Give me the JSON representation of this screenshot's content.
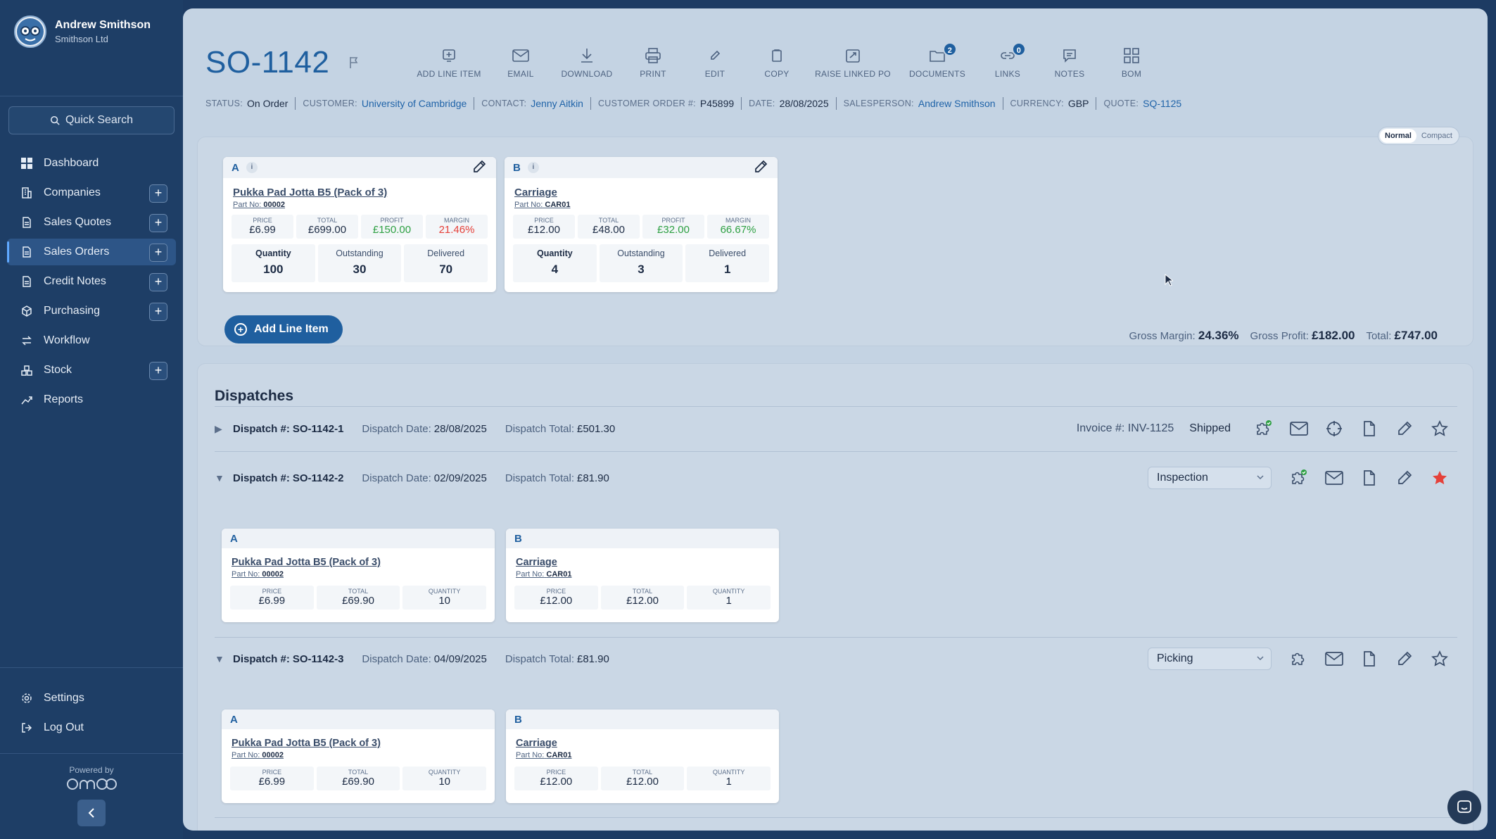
{
  "user": {
    "name": "Andrew Smithson",
    "company": "Smithson Ltd"
  },
  "search": {
    "label": "Quick Search"
  },
  "nav": {
    "items": [
      {
        "label": "Dashboard",
        "icon": "grid-icon",
        "plus": false
      },
      {
        "label": "Companies",
        "icon": "building-icon",
        "plus": true
      },
      {
        "label": "Sales Quotes",
        "icon": "document-icon",
        "plus": true
      },
      {
        "label": "Sales Orders",
        "icon": "document-icon",
        "plus": true,
        "active": true
      },
      {
        "label": "Credit Notes",
        "icon": "document-icon",
        "plus": true
      },
      {
        "label": "Purchasing",
        "icon": "box-icon",
        "plus": true
      },
      {
        "label": "Workflow",
        "icon": "arrows-icon",
        "plus": false
      },
      {
        "label": "Stock",
        "icon": "stock-icon",
        "plus": true
      },
      {
        "label": "Reports",
        "icon": "chart-icon",
        "plus": false
      }
    ],
    "settings": "Settings",
    "logout": "Log Out",
    "powered_by": "Powered by",
    "brand": "omoo"
  },
  "order": {
    "id": "SO-1142",
    "toolbar": {
      "add_line_item": "ADD LINE ITEM",
      "email": "EMAIL",
      "download": "DOWNLOAD",
      "print": "PRINT",
      "edit": "EDIT",
      "copy": "COPY",
      "raise_linked_po": "RAISE LINKED PO",
      "documents": "DOCUMENTS",
      "documents_count": "2",
      "links": "LINKS",
      "links_count": "0",
      "notes": "NOTES",
      "bom": "BOM"
    },
    "status": {
      "status_label": "STATUS:",
      "status": "On Order",
      "customer_label": "CUSTOMER:",
      "customer": "University of Cambridge",
      "contact_label": "CONTACT:",
      "contact": "Jenny Aitkin",
      "order_no_label": "CUSTOMER ORDER #:",
      "order_no": "P45899",
      "date_label": "DATE:",
      "date": "28/08/2025",
      "salesperson_label": "SALESPERSON:",
      "salesperson": "Andrew Smithson",
      "currency_label": "CURRENCY:",
      "currency": "GBP",
      "quote_label": "QUOTE:",
      "quote": "SQ-1125"
    },
    "view": {
      "normal": "Normal",
      "compact": "Compact"
    }
  },
  "labels": {
    "part_no": "Part No:",
    "price": "PRICE",
    "total": "TOTAL",
    "profit": "PROFIT",
    "margin": "MARGIN",
    "quantity": "Quantity",
    "outstanding": "Outstanding",
    "delivered": "Delivered",
    "quantity_caps": "QUANTITY"
  },
  "line_items": [
    {
      "letter": "A",
      "name": "Pukka Pad Jotta B5 (Pack of 3)",
      "part_no": "00002",
      "price": "£6.99",
      "total": "£699.00",
      "profit": "£150.00",
      "margin": "21.46%",
      "quantity": "100",
      "outstanding": "30",
      "delivered": "70"
    },
    {
      "letter": "B",
      "name": "Carriage",
      "part_no": "CAR01",
      "price": "£12.00",
      "total": "£48.00",
      "profit": "£32.00",
      "margin": "66.67%",
      "quantity": "4",
      "outstanding": "3",
      "delivered": "1"
    }
  ],
  "add_line_button": "Add Line Item",
  "totals": {
    "gross_margin_label": "Gross Margin:",
    "gross_margin": "24.36%",
    "gross_profit_label": "Gross Profit:",
    "gross_profit": "£182.00",
    "total_label": "Total:",
    "total": "£747.00"
  },
  "dispatches": {
    "title": "Dispatches",
    "dispatch_label": "Dispatch #:",
    "date_label": "Dispatch Date:",
    "total_label": "Dispatch Total:",
    "rows": [
      {
        "id": "SO-1142-1",
        "date": "28/08/2025",
        "total": "£501.30",
        "invoice": "Invoice #: INV-1125",
        "state": "Shipped",
        "expanded": false
      },
      {
        "id": "SO-1142-2",
        "date": "02/09/2025",
        "total": "£81.90",
        "state": "Inspection",
        "expanded": true,
        "items": [
          {
            "letter": "A",
            "name": "Pukka Pad Jotta B5 (Pack of 3)",
            "part_no": "00002",
            "price": "£6.99",
            "total": "£69.90",
            "quantity": "10"
          },
          {
            "letter": "B",
            "name": "Carriage",
            "part_no": "CAR01",
            "price": "£12.00",
            "total": "£12.00",
            "quantity": "1"
          }
        ]
      },
      {
        "id": "SO-1142-3",
        "date": "04/09/2025",
        "total": "£81.90",
        "state": "Picking",
        "expanded": true,
        "items": [
          {
            "letter": "A",
            "name": "Pukka Pad Jotta B5 (Pack of 3)",
            "part_no": "00002",
            "price": "£6.99",
            "total": "£69.90",
            "quantity": "10"
          },
          {
            "letter": "B",
            "name": "Carriage",
            "part_no": "CAR01",
            "price": "£12.00",
            "total": "£12.00",
            "quantity": "1"
          }
        ]
      }
    ]
  },
  "colors": {
    "accent": "#1f5f9f",
    "sidebar": "#1e3e66",
    "profit": "#2ea043",
    "warning": "#e5413a"
  }
}
